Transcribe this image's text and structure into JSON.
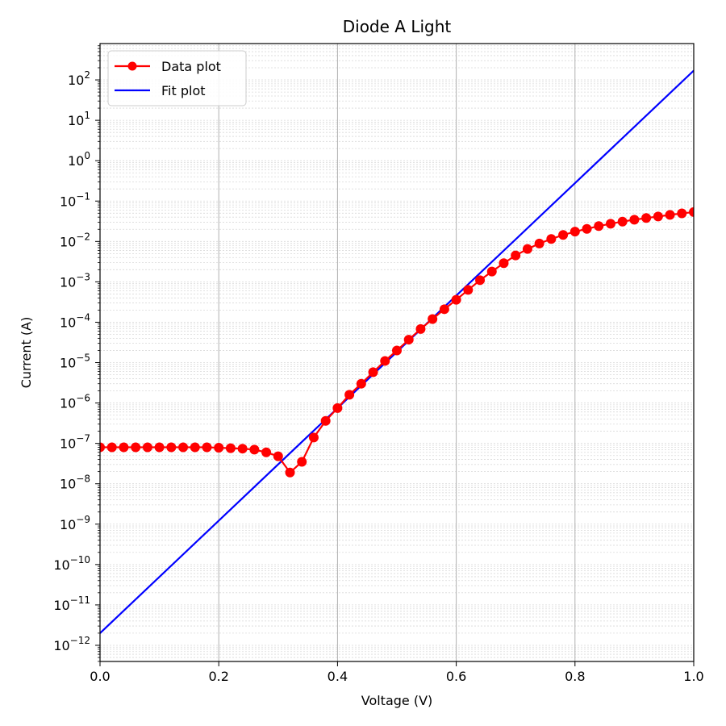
{
  "chart_data": {
    "type": "line",
    "title": "Diode A Light",
    "xlabel": "Voltage (V)",
    "ylabel": "Current (A)",
    "xlim": [
      0.0,
      1.0
    ],
    "ylim_log10": [
      -12.4,
      2.9
    ],
    "y_scale": "log",
    "grid": {
      "x_major": true,
      "y_minor": true
    },
    "legend_placement": "top-left",
    "x_ticks": [
      "0.0",
      "0.2",
      "0.4",
      "0.6",
      "0.8",
      "1.0"
    ],
    "x_tick_values": [
      0.0,
      0.2,
      0.4,
      0.6,
      0.8,
      1.0
    ],
    "y_tick_exponents": [
      -12,
      -11,
      -10,
      -9,
      -8,
      -7,
      -6,
      -5,
      -4,
      -3,
      -2,
      -1,
      0,
      1,
      2
    ],
    "series": [
      {
        "name": "Data plot",
        "color": "#ff0000",
        "marker": "circle",
        "x": [
          0.0,
          0.02,
          0.04,
          0.06,
          0.08,
          0.1,
          0.12,
          0.14,
          0.16,
          0.18,
          0.2,
          0.22,
          0.24,
          0.26,
          0.28,
          0.3,
          0.32,
          0.34,
          0.36,
          0.38,
          0.4,
          0.42,
          0.44,
          0.46,
          0.48,
          0.5,
          0.52,
          0.54,
          0.56,
          0.58,
          0.6,
          0.62,
          0.64,
          0.66,
          0.68,
          0.7,
          0.72,
          0.74,
          0.76,
          0.78,
          0.8,
          0.82,
          0.84,
          0.86,
          0.88,
          0.9,
          0.92,
          0.94,
          0.96,
          0.98,
          1.0
        ],
        "y": [
          8e-08,
          8e-08,
          8e-08,
          8e-08,
          8e-08,
          8e-08,
          8e-08,
          8e-08,
          8e-08,
          8e-08,
          7.8e-08,
          7.6e-08,
          7.4e-08,
          7e-08,
          6e-08,
          4.8e-08,
          1.9e-08,
          3.5e-08,
          1.4e-07,
          3.6e-07,
          7.5e-07,
          1.6e-06,
          3e-06,
          5.8e-06,
          1.1e-05,
          2e-05,
          3.7e-05,
          6.8e-05,
          0.00012,
          0.00021,
          0.00036,
          0.00063,
          0.0011,
          0.0018,
          0.0029,
          0.0045,
          0.0065,
          0.0089,
          0.0115,
          0.0145,
          0.0175,
          0.0205,
          0.024,
          0.0275,
          0.031,
          0.0345,
          0.038,
          0.0415,
          0.0455,
          0.0495,
          0.0535
        ]
      },
      {
        "name": "Fit plot",
        "color": "#0000ff",
        "marker": "none",
        "x": [
          0.0,
          1.0
        ],
        "y": [
          2e-12,
          170
        ]
      }
    ]
  }
}
